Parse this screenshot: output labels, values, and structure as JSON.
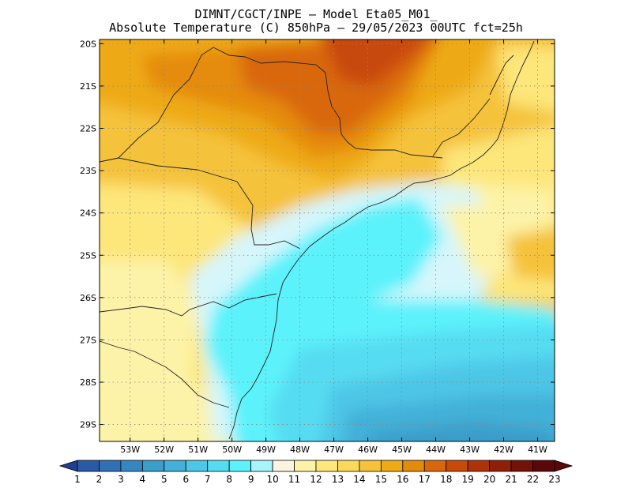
{
  "title_line1": "DIMNT/CGCT/INPE –  Model Eta05_M01_",
  "title_line2": "Absolute Temperature (C) 850hPa –  29/05/2023 00UTC fct=25h",
  "map": {
    "lon_range": [
      -53.9,
      -40.5
    ],
    "lat_range": [
      -29.4,
      -19.9
    ],
    "lat_ticks": [
      "20S",
      "21S",
      "22S",
      "23S",
      "24S",
      "25S",
      "26S",
      "27S",
      "28S",
      "29S"
    ],
    "lon_ticks": [
      "53W",
      "52W",
      "51W",
      "50W",
      "49W",
      "48W",
      "47W",
      "46W",
      "45W",
      "44W",
      "43W",
      "42W",
      "41W"
    ],
    "grid": true
  },
  "colorbar": {
    "labels": [
      "1",
      "2",
      "3",
      "4",
      "5",
      "6",
      "7",
      "8",
      "9",
      "10",
      "11",
      "12",
      "13",
      "14",
      "15",
      "16",
      "17",
      "18",
      "19",
      "20",
      "21",
      "22",
      "23"
    ],
    "colors": [
      "#1f3f8f",
      "#2a5aa6",
      "#3170b5",
      "#3687bf",
      "#3b9dc9",
      "#42b0d8",
      "#4ec6e6",
      "#56dcf2",
      "#5cf2fb",
      "#a8f4fb",
      "#fbf5e0",
      "#fdf3a8",
      "#fde67a",
      "#fbd85a",
      "#f5c23a",
      "#eeaa14",
      "#e58b0c",
      "#d9670a",
      "#c84a08",
      "#b03208",
      "#8f2008",
      "#731208",
      "#5a0808"
    ]
  }
}
